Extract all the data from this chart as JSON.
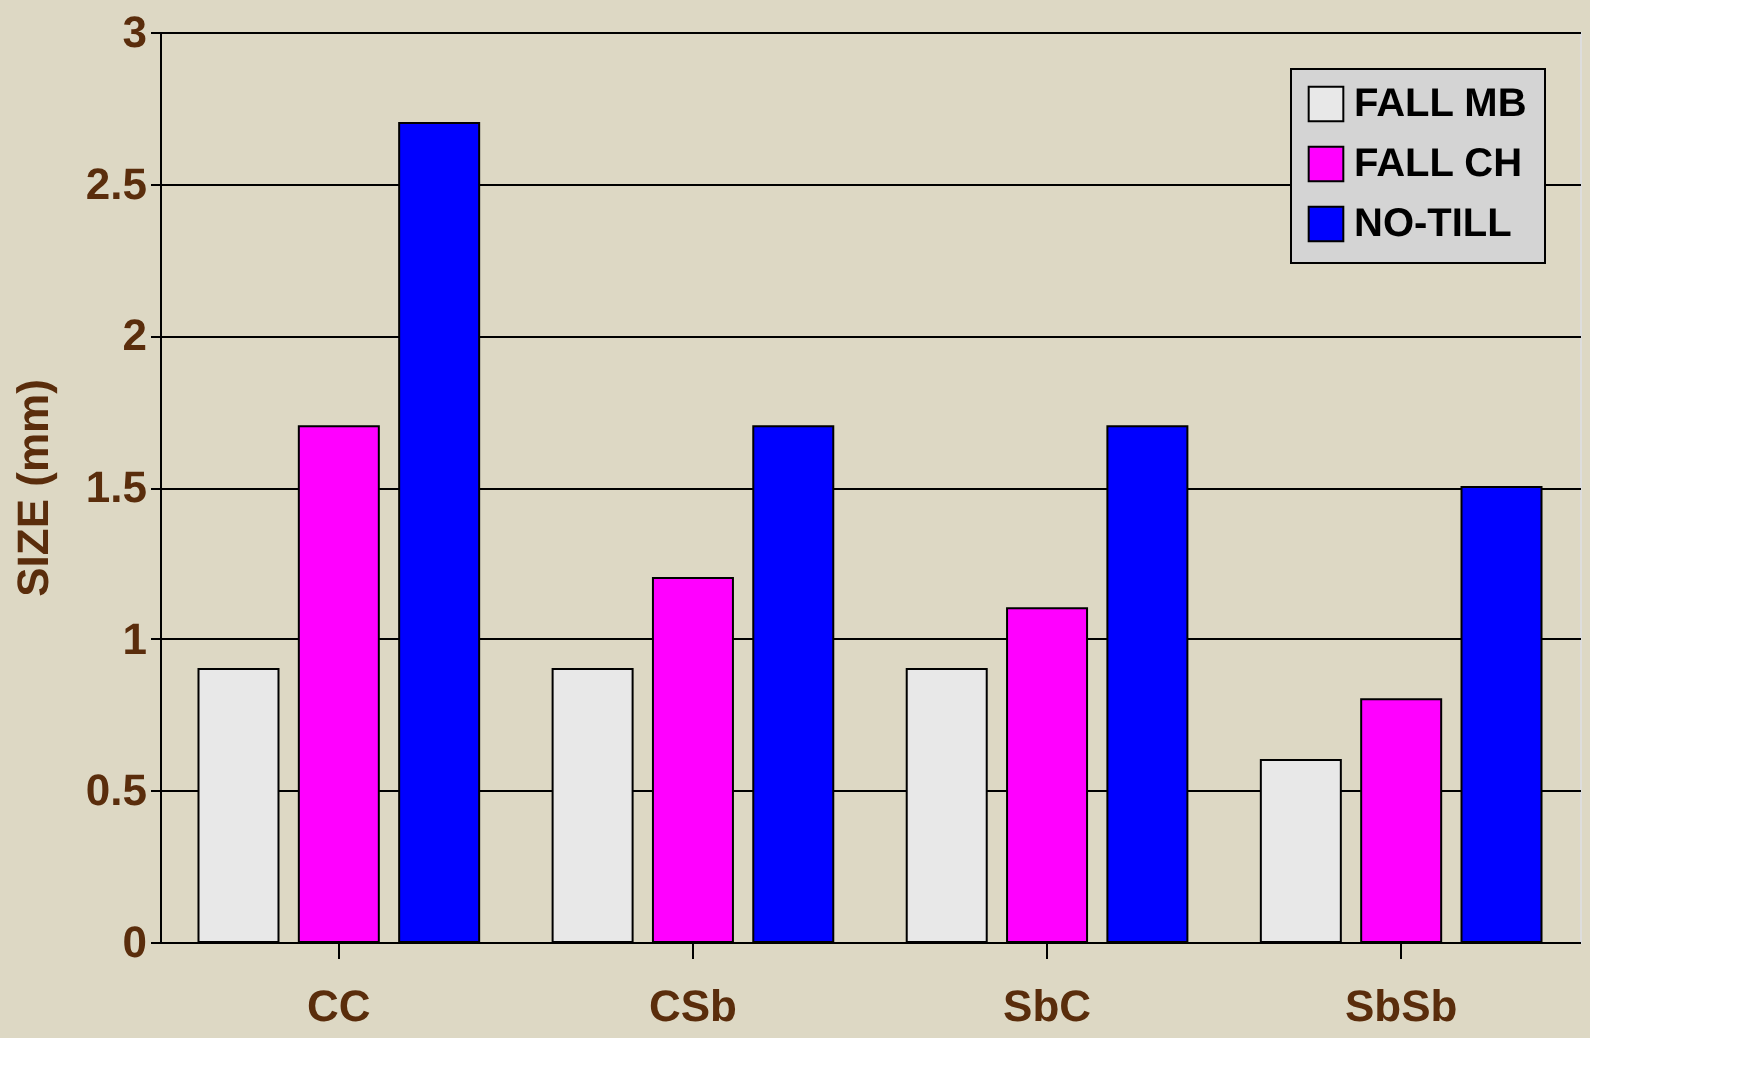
{
  "chart_data": {
    "type": "bar",
    "ylabel": "SIZE (mm)",
    "categories": [
      "CC",
      "CSb",
      "SbC",
      "SbSb"
    ],
    "series": [
      {
        "name": "FALL MB",
        "color": "#e8e8e8",
        "values": [
          0.9,
          0.9,
          0.9,
          0.6
        ]
      },
      {
        "name": "FALL CH",
        "color": "#ff00ff",
        "values": [
          1.7,
          1.2,
          1.1,
          0.8
        ]
      },
      {
        "name": "NO-TILL",
        "color": "#0000ff",
        "values": [
          2.7,
          1.7,
          1.7,
          1.5
        ]
      }
    ],
    "ylim": [
      0,
      3
    ],
    "yticks": [
      0,
      0.5,
      1,
      1.5,
      2,
      2.5,
      3
    ],
    "grid": "y",
    "legend": "top right"
  }
}
